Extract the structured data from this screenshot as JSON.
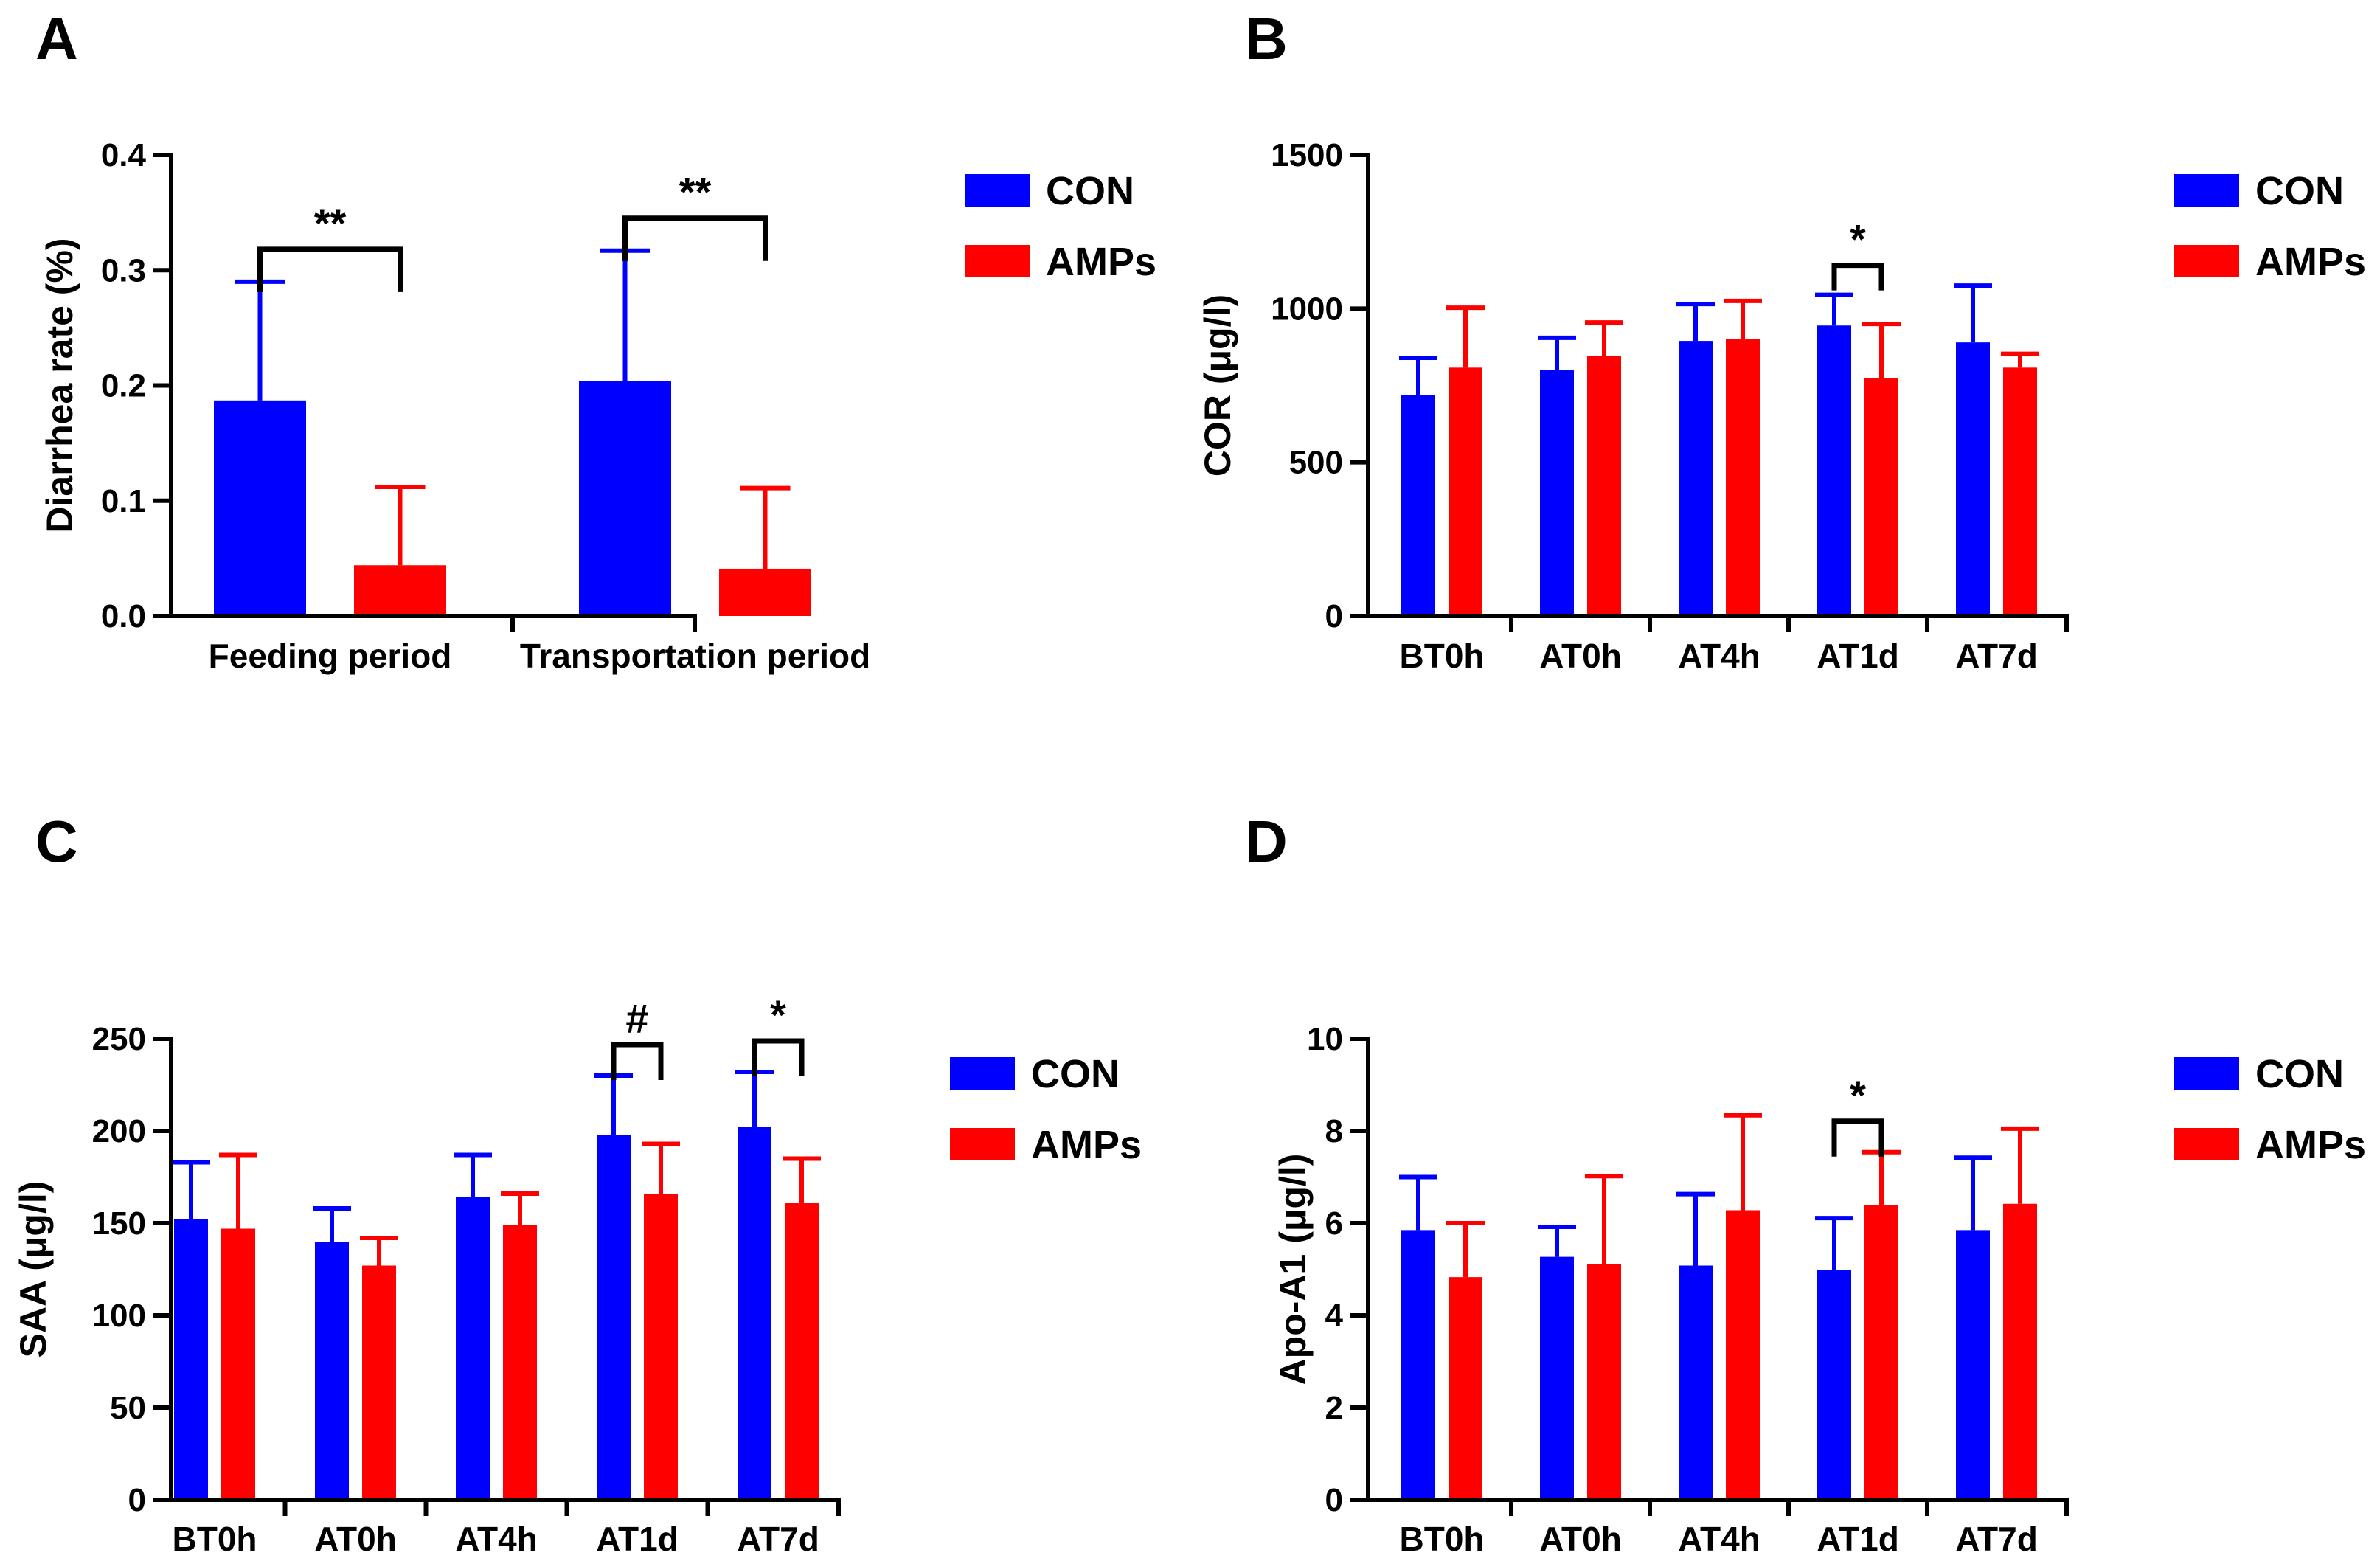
{
  "colors": {
    "CON": "#0000FF",
    "AMPs": "#FF0000",
    "axis": "#000000"
  },
  "legend": [
    {
      "name": "CON",
      "color": "#0000FF"
    },
    {
      "name": "AMPs",
      "color": "#FF0000"
    }
  ],
  "chart_data": [
    {
      "panel": "A",
      "type": "bar",
      "ylabel": "Diarrhea rate (%)",
      "xlabel": "",
      "ylim": [
        0,
        0.4
      ],
      "yticks": [
        "0.0",
        "0.1",
        "0.2",
        "0.3",
        "0.4"
      ],
      "categories": [
        "Feeding period",
        "Transportation period"
      ],
      "series": [
        {
          "name": "CON",
          "values": [
            0.187,
            0.204
          ],
          "errors": [
            0.103,
            0.113
          ]
        },
        {
          "name": "AMPs",
          "values": [
            0.044,
            0.041
          ],
          "errors": [
            0.068,
            0.07
          ]
        }
      ],
      "annotations": [
        {
          "category": "Feeding period",
          "text": "**"
        },
        {
          "category": "Transportation period",
          "text": "**"
        }
      ]
    },
    {
      "panel": "B",
      "type": "bar",
      "ylabel": "COR (μg/l)",
      "xlabel": "",
      "ylim": [
        0,
        1500
      ],
      "yticks": [
        "0",
        "500",
        "1000",
        "1500"
      ],
      "categories": [
        "BT0h",
        "AT0h",
        "AT4h",
        "AT1d",
        "AT7d"
      ],
      "series": [
        {
          "name": "CON",
          "values": [
            720,
            800,
            895,
            945,
            890
          ],
          "errors": [
            120,
            105,
            120,
            100,
            185
          ]
        },
        {
          "name": "AMPs",
          "values": [
            808,
            845,
            900,
            775,
            808
          ],
          "errors": [
            195,
            110,
            125,
            175,
            45
          ]
        }
      ],
      "annotations": [
        {
          "category": "AT1d",
          "text": "*"
        }
      ]
    },
    {
      "panel": "C",
      "type": "bar",
      "ylabel": "SAA (μg/l)",
      "xlabel": "",
      "ylim": [
        0,
        250
      ],
      "yticks": [
        "0",
        "50",
        "100",
        "150",
        "200",
        "250"
      ],
      "categories": [
        "BT0h",
        "AT0h",
        "AT4h",
        "AT1d",
        "AT7d"
      ],
      "series": [
        {
          "name": "CON",
          "values": [
            152,
            140,
            164,
            198,
            202
          ],
          "errors": [
            31,
            18,
            23,
            32,
            30
          ]
        },
        {
          "name": "AMPs",
          "values": [
            147,
            127,
            149,
            166,
            161
          ],
          "errors": [
            40,
            15,
            17,
            27,
            24
          ]
        }
      ],
      "annotations": [
        {
          "category": "AT1d",
          "text": "#"
        },
        {
          "category": "AT7d",
          "text": "*"
        }
      ]
    },
    {
      "panel": "D",
      "type": "bar",
      "ylabel": "Apo-A1 (μg/l)",
      "xlabel": "",
      "ylim": [
        0,
        10
      ],
      "yticks": [
        "0",
        "2",
        "4",
        "6",
        "8",
        "10"
      ],
      "categories": [
        "BT0h",
        "AT0h",
        "AT4h",
        "AT1d",
        "AT7d"
      ],
      "series": [
        {
          "name": "CON",
          "values": [
            5.85,
            5.27,
            5.08,
            4.98,
            5.85
          ],
          "errors": [
            1.15,
            0.65,
            1.55,
            1.13,
            1.57
          ]
        },
        {
          "name": "AMPs",
          "values": [
            4.83,
            5.12,
            6.28,
            6.4,
            6.42
          ],
          "errors": [
            1.17,
            1.9,
            2.06,
            1.14,
            1.63
          ]
        }
      ],
      "annotations": [
        {
          "category": "AT1d",
          "text": "*"
        }
      ]
    }
  ]
}
